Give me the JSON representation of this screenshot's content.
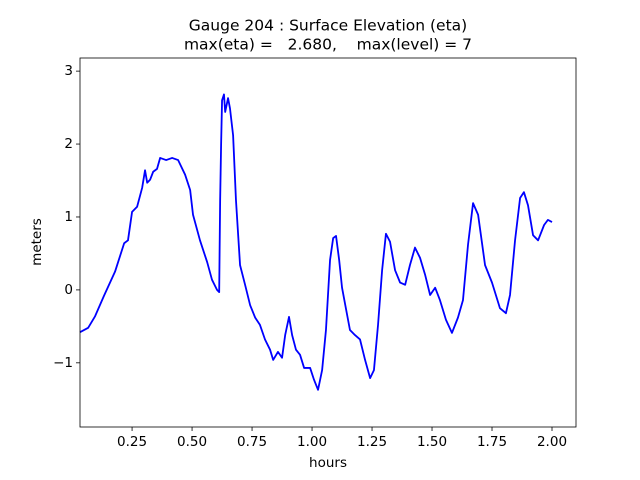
{
  "chart_data": {
    "type": "line",
    "title": "Gauge 204 : Surface Elevation (eta)",
    "subtitle": "max(eta) =   2.680,    max(level) = 7",
    "xlabel": "hours",
    "ylabel": "meters",
    "xlim": [
      0.033,
      2.1
    ],
    "ylim": [
      -1.88,
      3.18
    ],
    "xticks": [
      0.25,
      {
        "value": 0.5,
        "label": "0.50"
      },
      0.75,
      {
        "value": 1.0,
        "label": "1.00"
      },
      1.25,
      {
        "value": 1.5,
        "label": "1.50"
      },
      1.75,
      {
        "value": 2.0,
        "label": "2.00"
      }
    ],
    "yticks": [
      {
        "value": -1,
        "label": "−1"
      },
      0,
      1,
      2,
      3
    ],
    "series": [
      {
        "color": "#0000ff",
        "x": [
          0.033,
          0.067,
          0.096,
          0.133,
          0.179,
          0.217,
          0.233,
          0.25,
          0.271,
          0.292,
          0.304,
          0.313,
          0.325,
          0.338,
          0.354,
          0.367,
          0.392,
          0.417,
          0.442,
          0.471,
          0.492,
          0.504,
          0.533,
          0.563,
          0.583,
          0.604,
          0.613,
          0.617,
          0.621,
          0.625,
          0.633,
          0.638,
          0.65,
          0.658,
          0.671,
          0.683,
          0.7,
          0.721,
          0.742,
          0.763,
          0.783,
          0.804,
          0.825,
          0.838,
          0.858,
          0.875,
          0.888,
          0.904,
          0.917,
          0.933,
          0.95,
          0.967,
          0.992,
          1.008,
          1.025,
          1.042,
          1.058,
          1.075,
          1.088,
          1.1,
          1.113,
          1.125,
          1.142,
          1.158,
          1.179,
          1.2,
          1.221,
          1.242,
          1.258,
          1.275,
          1.292,
          1.308,
          1.325,
          1.346,
          1.367,
          1.388,
          1.408,
          1.429,
          1.45,
          1.471,
          1.492,
          1.513,
          1.533,
          1.558,
          1.583,
          1.608,
          1.629,
          1.65,
          1.671,
          1.692,
          1.721,
          1.75,
          1.783,
          1.808,
          1.825,
          1.846,
          1.867,
          1.883,
          1.9,
          1.921,
          1.942,
          1.967,
          1.983,
          2.0
        ],
        "values": [
          -0.58,
          -0.52,
          -0.36,
          -0.08,
          0.25,
          0.64,
          0.68,
          1.07,
          1.14,
          1.4,
          1.64,
          1.47,
          1.51,
          1.62,
          1.66,
          1.81,
          1.78,
          1.81,
          1.78,
          1.58,
          1.37,
          1.03,
          0.68,
          0.38,
          0.14,
          0.0,
          -0.03,
          1.23,
          1.99,
          2.6,
          2.68,
          2.44,
          2.63,
          2.49,
          2.12,
          1.23,
          0.34,
          0.07,
          -0.21,
          -0.38,
          -0.48,
          -0.68,
          -0.82,
          -0.96,
          -0.85,
          -0.93,
          -0.62,
          -0.37,
          -0.62,
          -0.82,
          -0.89,
          -1.07,
          -1.07,
          -1.23,
          -1.37,
          -1.1,
          -0.55,
          0.41,
          0.71,
          0.74,
          0.41,
          0.03,
          -0.27,
          -0.55,
          -0.62,
          -0.68,
          -0.96,
          -1.21,
          -1.1,
          -0.48,
          0.27,
          0.77,
          0.66,
          0.27,
          0.1,
          0.07,
          0.34,
          0.58,
          0.44,
          0.21,
          -0.07,
          0.03,
          -0.14,
          -0.41,
          -0.59,
          -0.38,
          -0.14,
          0.62,
          1.19,
          1.03,
          0.34,
          0.1,
          -0.25,
          -0.32,
          -0.07,
          0.68,
          1.26,
          1.34,
          1.16,
          0.75,
          0.68,
          0.89,
          0.96,
          0.93
        ]
      }
    ]
  }
}
